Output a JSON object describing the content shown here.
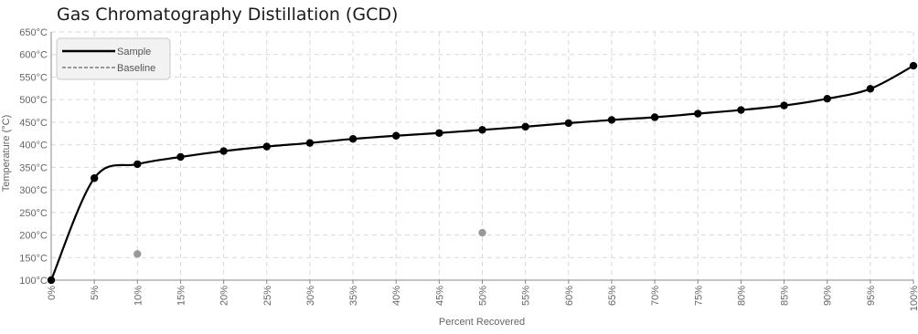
{
  "chart_data": {
    "type": "line",
    "title": "Gas Chromatography Distillation (GCD)",
    "xlabel": "Percent Recovered",
    "ylabel": "Temperature (°C)",
    "x_ticks": [
      "0%",
      "5%",
      "10%",
      "15%",
      "20%",
      "25%",
      "30%",
      "35%",
      "40%",
      "45%",
      "50%",
      "55%",
      "60%",
      "65%",
      "70%",
      "75%",
      "80%",
      "85%",
      "90%",
      "95%",
      "100%"
    ],
    "y_ticks": [
      "100°C",
      "150°C",
      "200°C",
      "250°C",
      "300°C",
      "350°C",
      "400°C",
      "450°C",
      "500°C",
      "550°C",
      "600°C",
      "650°C"
    ],
    "xlim": [
      0,
      100
    ],
    "ylim": [
      100,
      650
    ],
    "grid": true,
    "legend_position": "top-left",
    "series": [
      {
        "name": "Sample",
        "style": "solid",
        "color": "#000000",
        "x": [
          0,
          5,
          10,
          15,
          20,
          25,
          30,
          35,
          40,
          45,
          50,
          55,
          60,
          65,
          70,
          75,
          80,
          85,
          90,
          95,
          100
        ],
        "values": [
          100,
          326,
          357,
          373,
          386,
          396,
          404,
          413,
          420,
          426,
          433,
          440,
          448,
          455,
          461,
          469,
          477,
          487,
          502,
          524,
          575
        ]
      },
      {
        "name": "Baseline",
        "style": "dashed",
        "color": "#999999",
        "x": [
          10,
          50
        ],
        "values": [
          158,
          205
        ]
      }
    ]
  }
}
